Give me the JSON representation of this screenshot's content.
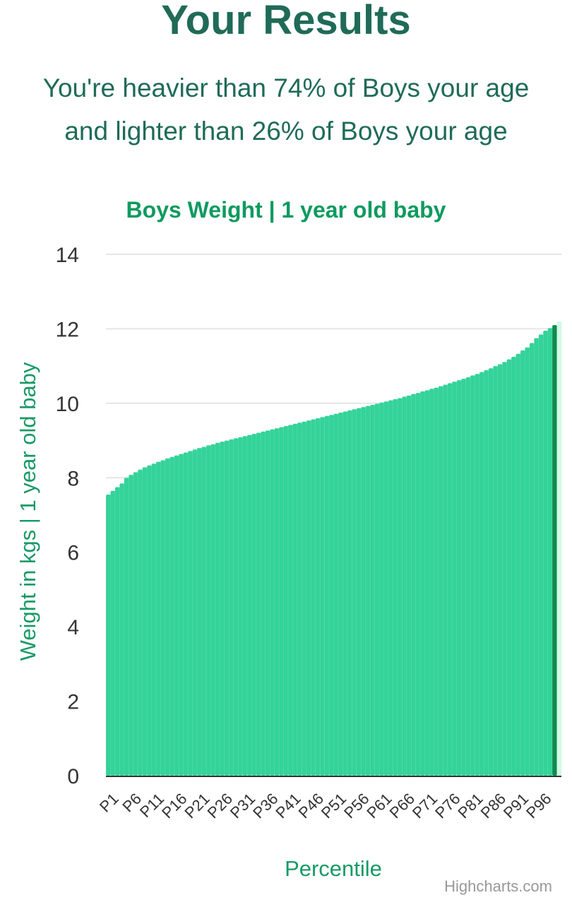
{
  "page": {
    "title": "Your Results",
    "result_line_1": "You're heavier than 74% of Boys your age",
    "result_line_2": "and lighter than 26% of Boys your age"
  },
  "chart_data": {
    "type": "bar",
    "title": "Boys Weight | 1 year old baby",
    "xlabel": "Percentile",
    "ylabel": "Weight in kgs | 1 year old baby",
    "ylim": [
      0,
      14
    ],
    "yticks": [
      0,
      2,
      4,
      6,
      8,
      10,
      12,
      14
    ],
    "grid": true,
    "credits": "Highcharts.com",
    "categories": [
      "P1",
      "P2",
      "P3",
      "P4",
      "P5",
      "P6",
      "P7",
      "P8",
      "P9",
      "P10",
      "P11",
      "P12",
      "P13",
      "P14",
      "P15",
      "P16",
      "P17",
      "P18",
      "P19",
      "P20",
      "P21",
      "P22",
      "P23",
      "P24",
      "P25",
      "P26",
      "P27",
      "P28",
      "P29",
      "P30",
      "P31",
      "P32",
      "P33",
      "P34",
      "P35",
      "P36",
      "P37",
      "P38",
      "P39",
      "P40",
      "P41",
      "P42",
      "P43",
      "P44",
      "P45",
      "P46",
      "P47",
      "P48",
      "P49",
      "P50",
      "P51",
      "P52",
      "P53",
      "P54",
      "P55",
      "P56",
      "P57",
      "P58",
      "P59",
      "P60",
      "P61",
      "P62",
      "P63",
      "P64",
      "P65",
      "P66",
      "P67",
      "P68",
      "P69",
      "P70",
      "P71",
      "P72",
      "P73",
      "P74",
      "P75",
      "P76",
      "P77",
      "P78",
      "P79",
      "P80",
      "P81",
      "P82",
      "P83",
      "P84",
      "P85",
      "P86",
      "P87",
      "P88",
      "P89",
      "P90",
      "P91",
      "P92",
      "P93",
      "P94",
      "P95",
      "P96",
      "P97",
      "P98",
      "P99",
      "P100"
    ],
    "tick_labels": [
      "P1",
      "P6",
      "P11",
      "P16",
      "P21",
      "P26",
      "P31",
      "P36",
      "P41",
      "P46",
      "P51",
      "P56",
      "P61",
      "P66",
      "P71",
      "P76",
      "P81",
      "P86",
      "P91",
      "P96"
    ],
    "values": [
      7.55,
      7.65,
      7.75,
      7.85,
      8.0,
      8.08,
      8.15,
      8.22,
      8.28,
      8.33,
      8.38,
      8.43,
      8.47,
      8.52,
      8.56,
      8.6,
      8.64,
      8.68,
      8.72,
      8.76,
      8.8,
      8.83,
      8.87,
      8.9,
      8.94,
      8.97,
      9.0,
      9.03,
      9.06,
      9.09,
      9.12,
      9.15,
      9.18,
      9.21,
      9.24,
      9.27,
      9.3,
      9.33,
      9.36,
      9.39,
      9.42,
      9.45,
      9.48,
      9.51,
      9.54,
      9.57,
      9.6,
      9.63,
      9.66,
      9.69,
      9.72,
      9.75,
      9.78,
      9.81,
      9.84,
      9.87,
      9.9,
      9.93,
      9.96,
      9.99,
      10.02,
      10.05,
      10.08,
      10.11,
      10.14,
      10.18,
      10.21,
      10.25,
      10.28,
      10.32,
      10.35,
      10.39,
      10.42,
      10.46,
      10.5,
      10.54,
      10.58,
      10.62,
      10.66,
      10.7,
      10.75,
      10.79,
      10.84,
      10.89,
      10.94,
      11.0,
      11.05,
      11.11,
      11.18,
      11.25,
      11.33,
      11.42,
      11.5,
      11.62,
      11.75,
      11.85,
      11.95,
      12.02,
      12.1,
      12.2
    ],
    "highlight_index": 98,
    "colors": {
      "bar": "#34d399",
      "highlight": "#0e8a4f",
      "last_bar": "#d1fae5",
      "title": "#0e9a5f",
      "axis_label": "#179a66",
      "tick_text": "#333333",
      "grid": "#e6e6e6",
      "heading": "#1f6b57",
      "credits": "#999999"
    }
  }
}
